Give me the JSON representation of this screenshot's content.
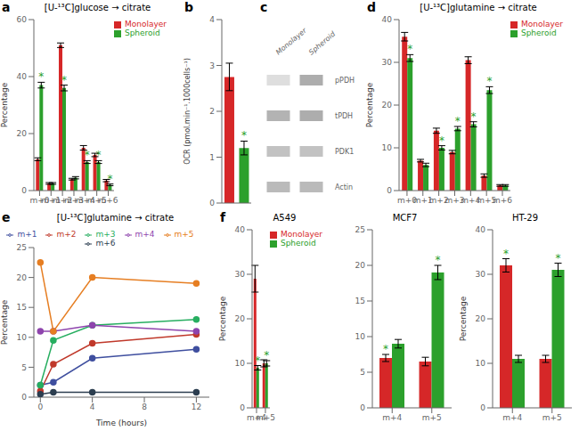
{
  "chart_data": [
    {
      "type": "bar",
      "title": "[U-¹³C]glucose → citrate",
      "categories": [
        "m+0",
        "m+1",
        "m+2",
        "m+3",
        "m+4",
        "m+5",
        "m+6"
      ],
      "series": [
        {
          "name": "Monolayer",
          "color": "#d62728",
          "values": [
            11,
            2.5,
            51,
            4,
            15,
            12.5,
            3.5
          ],
          "errors": [
            0.5,
            0.3,
            0.8,
            0.3,
            0.8,
            0.6,
            0.4
          ]
        },
        {
          "name": "Spheroid",
          "color": "#2ca02c",
          "values": [
            37,
            2.5,
            36,
            4.5,
            10,
            10,
            2
          ],
          "errors": [
            1.0,
            0.3,
            1.0,
            0.4,
            0.5,
            0.5,
            0.3
          ]
        }
      ],
      "ylabel": "Percentage",
      "ylim": [
        0,
        60
      ],
      "yticks": [
        0,
        20,
        40,
        60
      ],
      "legend": "upper right",
      "annotations": [
        {
          "text": "a"
        },
        {
          "text": "*",
          "series": "Spheroid",
          "index": 0,
          "color": "#2ca02c"
        },
        {
          "text": "*",
          "series": "Spheroid",
          "index": 2,
          "color": "#2ca02c"
        },
        {
          "text": "*",
          "series": "Spheroid",
          "index": 4,
          "color": "#2ca02c"
        },
        {
          "text": "*",
          "series": "Spheroid",
          "index": 5,
          "color": "#2ca02c"
        },
        {
          "text": "*",
          "series": "Spheroid",
          "index": 6,
          "color": "#2ca02c"
        }
      ]
    },
    {
      "type": "bar",
      "categories": [
        null,
        null
      ],
      "values": [
        2.75,
        1.2
      ],
      "errors": [
        0.3,
        0.15
      ],
      "colors": [
        "#d62728",
        "#2ca02c"
      ],
      "ylabel": "OCR (pmol.min⁻¹.1000cells⁻¹)",
      "ylim": [
        0,
        4
      ],
      "yticks": [
        0,
        1,
        2,
        3,
        4
      ],
      "tick_labels": "y",
      "annotations": [
        {
          "text": "b"
        },
        {
          "text": "*",
          "index": 1,
          "color": "#2ca02c"
        }
      ]
    },
    {
      "type": "heatmap",
      "x_categories": [
        "Monolayer",
        "Spheroid"
      ],
      "y_categories": [
        "pPDH",
        "tPDH",
        "PDK1",
        "Actin"
      ],
      "cells": [
        [
          0.15,
          0.38
        ],
        [
          0.35,
          0.38
        ],
        [
          0.28,
          0.28
        ],
        [
          0.32,
          0.32
        ]
      ],
      "annotations": [
        {
          "text": "c"
        }
      ]
    },
    {
      "type": "bar",
      "title": "[U-¹³C]glutamine → citrate",
      "categories": [
        "m+0",
        "m+1",
        "m+2",
        "m+3",
        "m+4",
        "m+5",
        "m+6"
      ],
      "series": [
        {
          "name": "Monolayer",
          "color": "#d62728",
          "values": [
            36,
            7,
            14,
            9,
            30.5,
            3.5,
            1.2
          ],
          "errors": [
            1.0,
            0.3,
            0.6,
            0.4,
            0.8,
            0.4,
            0.2
          ]
        },
        {
          "name": "Spheroid",
          "color": "#2ca02c",
          "values": [
            31,
            6,
            10,
            14.5,
            15.5,
            23.5,
            1.2
          ],
          "errors": [
            0.8,
            0.4,
            0.5,
            0.5,
            0.6,
            0.8,
            0.2
          ]
        }
      ],
      "ylabel": "Percentage",
      "ylim": [
        0,
        40
      ],
      "yticks": [
        0,
        10,
        20,
        30,
        40
      ],
      "legend": "upper right",
      "annotations": [
        {
          "text": "d"
        },
        {
          "text": "*",
          "series": "Spheroid",
          "index": 0,
          "color": "#2ca02c"
        },
        {
          "text": "*",
          "series": "Spheroid",
          "index": 2,
          "color": "#2ca02c"
        },
        {
          "text": "*",
          "series": "Spheroid",
          "index": 3,
          "color": "#2ca02c"
        },
        {
          "text": "*",
          "series": "Spheroid",
          "index": 4,
          "color": "#2ca02c"
        },
        {
          "text": "*",
          "series": "Spheroid",
          "index": 5,
          "color": "#2ca02c"
        }
      ]
    },
    {
      "type": "line",
      "title": "[U-¹³C]glutamine → citrate",
      "x": [
        0,
        1,
        4,
        12
      ],
      "series": [
        {
          "name": "m+1",
          "color": "#3f4f9f",
          "marker": "circle",
          "values": [
            2,
            2.5,
            6.5,
            8
          ]
        },
        {
          "name": "m+2",
          "color": "#c0392b",
          "marker": "circle",
          "values": [
            1,
            5.5,
            9,
            10.5
          ]
        },
        {
          "name": "m+3",
          "color": "#27ae60",
          "marker": "circle",
          "values": [
            2,
            9.5,
            12,
            13
          ]
        },
        {
          "name": "m+4",
          "color": "#8e44ad",
          "marker": "circle",
          "values": [
            11,
            11,
            12,
            11
          ]
        },
        {
          "name": "m+5",
          "color": "#e67e22",
          "marker": "circle",
          "values": [
            22.5,
            11,
            20,
            19
          ]
        },
        {
          "name": "m+6",
          "color": "#2c3e50",
          "marker": "circle",
          "values": [
            0.5,
            0.8,
            0.8,
            0.8
          ]
        }
      ],
      "xlabel": "Time (hours)",
      "ylabel": "Percentage",
      "xlim": [
        -0.5,
        13
      ],
      "xticks": [
        0,
        4,
        8,
        12
      ],
      "ylim": [
        0,
        25
      ],
      "yticks": [
        0,
        5,
        10,
        15,
        20,
        25
      ],
      "legend": "upper center",
      "annotations": [
        {
          "text": "e"
        }
      ]
    },
    {
      "type": "bar",
      "title": "A549",
      "categories": [
        "m+4",
        "m+5"
      ],
      "series": [
        {
          "name": "Monolayer",
          "color": "#d62728",
          "values": [
            29,
            10
          ],
          "errors": [
            3.0,
            0.8
          ]
        },
        {
          "name": "Spheroid",
          "color": "#2ca02c",
          "values": [
            9,
            10
          ],
          "errors": [
            0.5,
            0.6
          ]
        }
      ],
      "ylabel": "Percentage",
      "ylim": [
        0,
        40
      ],
      "yticks": [
        0,
        10,
        20,
        30,
        40
      ],
      "legend": "upper right",
      "annotations": [
        {
          "text": "f"
        },
        {
          "text": "*",
          "series": "Spheroid",
          "index": 0,
          "color": "#2ca02c"
        },
        {
          "text": "*",
          "series": "Spheroid",
          "index": 1,
          "color": "#2ca02c"
        }
      ]
    },
    {
      "type": "bar",
      "title": "MCF7",
      "categories": [
        "m+4",
        "m+5"
      ],
      "series": [
        {
          "name": "Monolayer",
          "color": "#d62728",
          "values": [
            7,
            6.5
          ],
          "errors": [
            0.5,
            0.6
          ]
        },
        {
          "name": "Spheroid",
          "color": "#2ca02c",
          "values": [
            9,
            19
          ],
          "errors": [
            0.6,
            1.0
          ]
        }
      ],
      "ylim": [
        0,
        25
      ],
      "yticks": [
        0,
        5,
        10,
        15,
        20,
        25
      ],
      "annotations": [
        {
          "text": "*",
          "series": "Monolayer",
          "index": 0,
          "color": "#2ca02c"
        },
        {
          "text": "*",
          "series": "Spheroid",
          "index": 1,
          "color": "#2ca02c"
        }
      ]
    },
    {
      "type": "bar",
      "title": "HT-29",
      "categories": [
        "m+4",
        "m+5"
      ],
      "series": [
        {
          "name": "Monolayer",
          "color": "#d62728",
          "values": [
            32,
            11
          ],
          "errors": [
            1.5,
            0.8
          ]
        },
        {
          "name": "Spheroid",
          "color": "#2ca02c",
          "values": [
            11,
            31
          ],
          "errors": [
            0.8,
            1.5
          ]
        }
      ],
      "ylabel": "Percentage",
      "ylim": [
        0,
        40
      ],
      "yticks": [
        0,
        10,
        20,
        30,
        40
      ],
      "annotations": [
        {
          "text": "*",
          "series": "Monolayer",
          "index": 0,
          "color": "#2ca02c"
        },
        {
          "text": "*",
          "series": "Spheroid",
          "index": 1,
          "color": "#2ca02c"
        }
      ]
    }
  ]
}
